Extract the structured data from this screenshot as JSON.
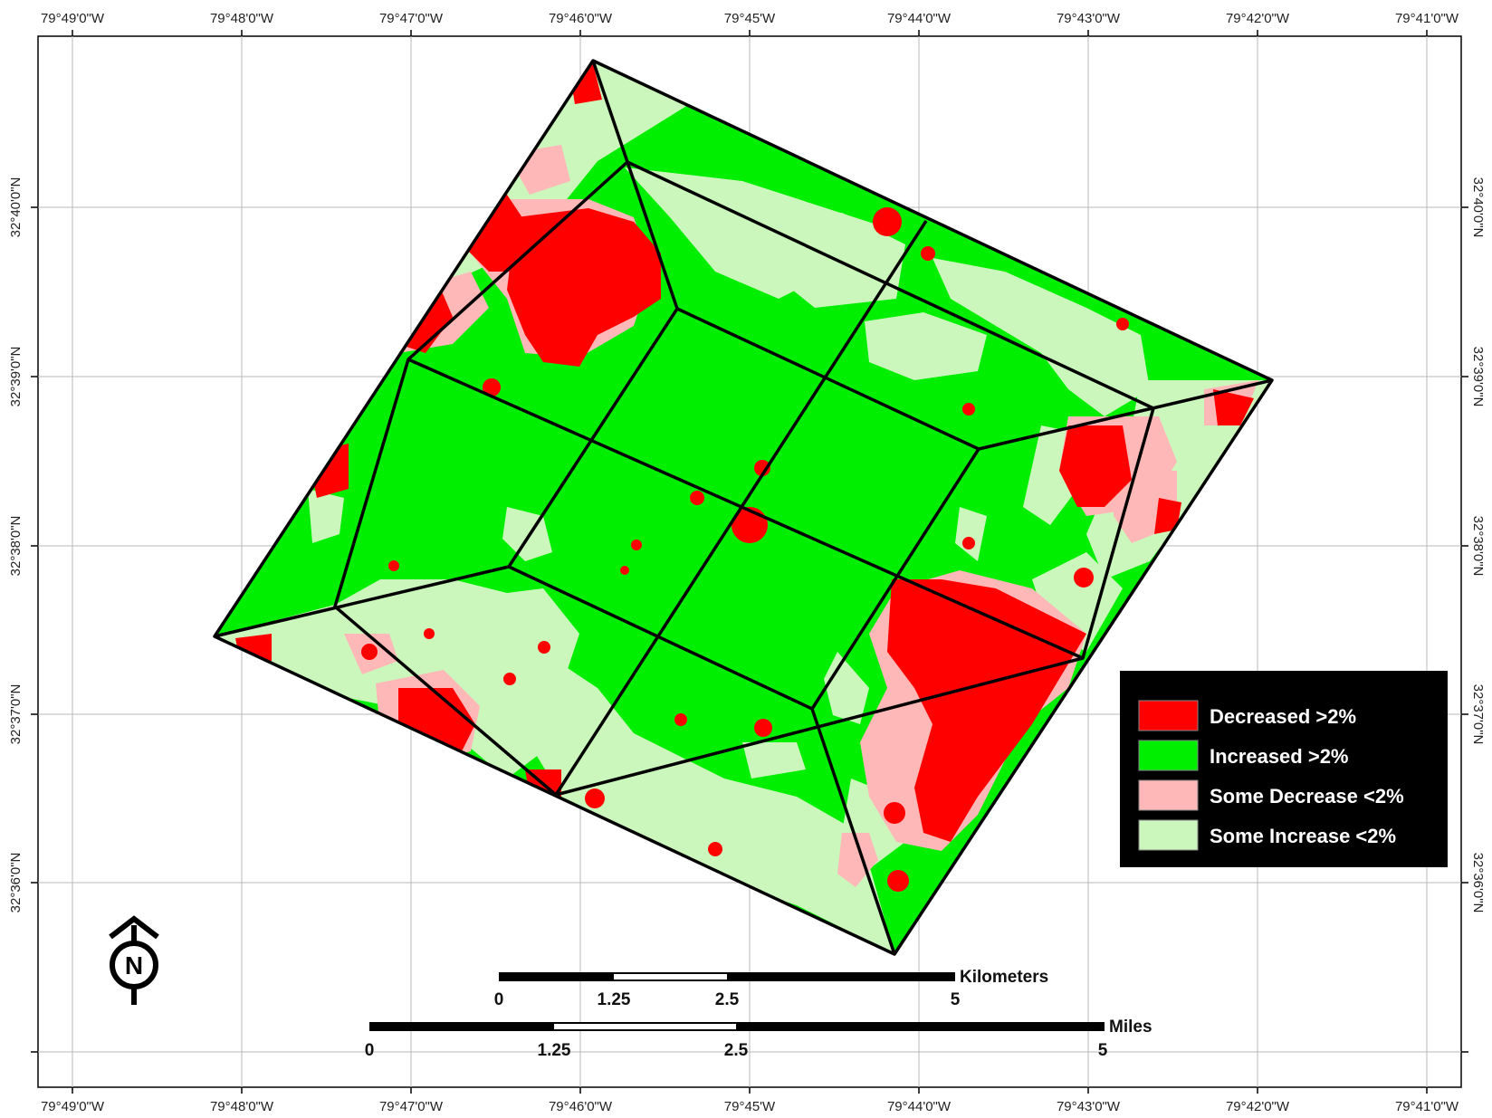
{
  "colors": {
    "decreased": "#ff0000",
    "increased": "#00ee00",
    "some_decrease": "#ffb8b8",
    "some_increase": "#ccf7bc",
    "grid": "#b8b8b8",
    "frame": "#000000",
    "legend_bg": "#000000"
  },
  "axes": {
    "longitude_labels": [
      "79°49'0\"W",
      "79°48'0\"W",
      "79°47'0\"W",
      "79°46'0\"W",
      "79°45'W",
      "79°44'0\"W",
      "79°43'0\"W",
      "79°42'0\"W",
      "79°41'0\"W"
    ],
    "latitude_labels": [
      "32°40'0\"N",
      "32°39'0\"N",
      "32°38'0\"N",
      "32°37'0\"N",
      "32°36'0\"N"
    ]
  },
  "legend": {
    "items": [
      {
        "label": "Decreased >2%",
        "color_key": "decreased"
      },
      {
        "label": "Increased >2%",
        "color_key": "increased"
      },
      {
        "label": "Some Decrease <2%",
        "color_key": "some_decrease"
      },
      {
        "label": "Some Increase <2%",
        "color_key": "some_increase"
      }
    ]
  },
  "scale_bars": {
    "kilometers": {
      "unit": "Kilometers",
      "ticks": [
        "0",
        "1.25",
        "2.5",
        "5"
      ]
    },
    "miles": {
      "unit": "Miles",
      "ticks": [
        "0",
        "1.25",
        "2.5",
        "5"
      ]
    }
  },
  "north_arrow": {
    "letter": "N",
    "icon": "north-arrow-icon"
  }
}
